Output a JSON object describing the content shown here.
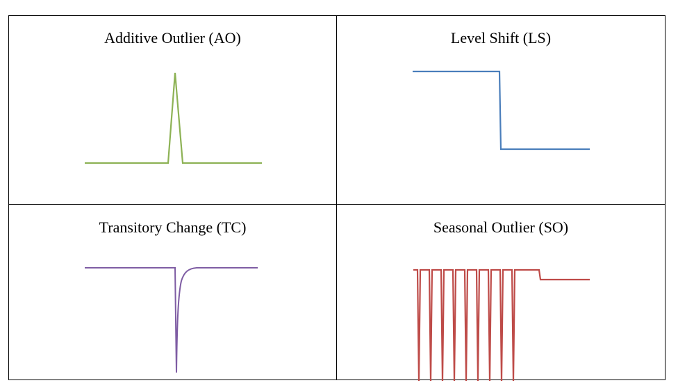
{
  "panels": [
    {
      "title": "Additive Outlier (AO)",
      "color": "#8db255"
    },
    {
      "title": "Level Shift (LS)",
      "color": "#4a7ebb"
    },
    {
      "title": "Transitory Change (TC)",
      "color": "#7e5ca3"
    },
    {
      "title": "Seasonal Outlier (SO)",
      "color": "#be4b48"
    }
  ]
}
